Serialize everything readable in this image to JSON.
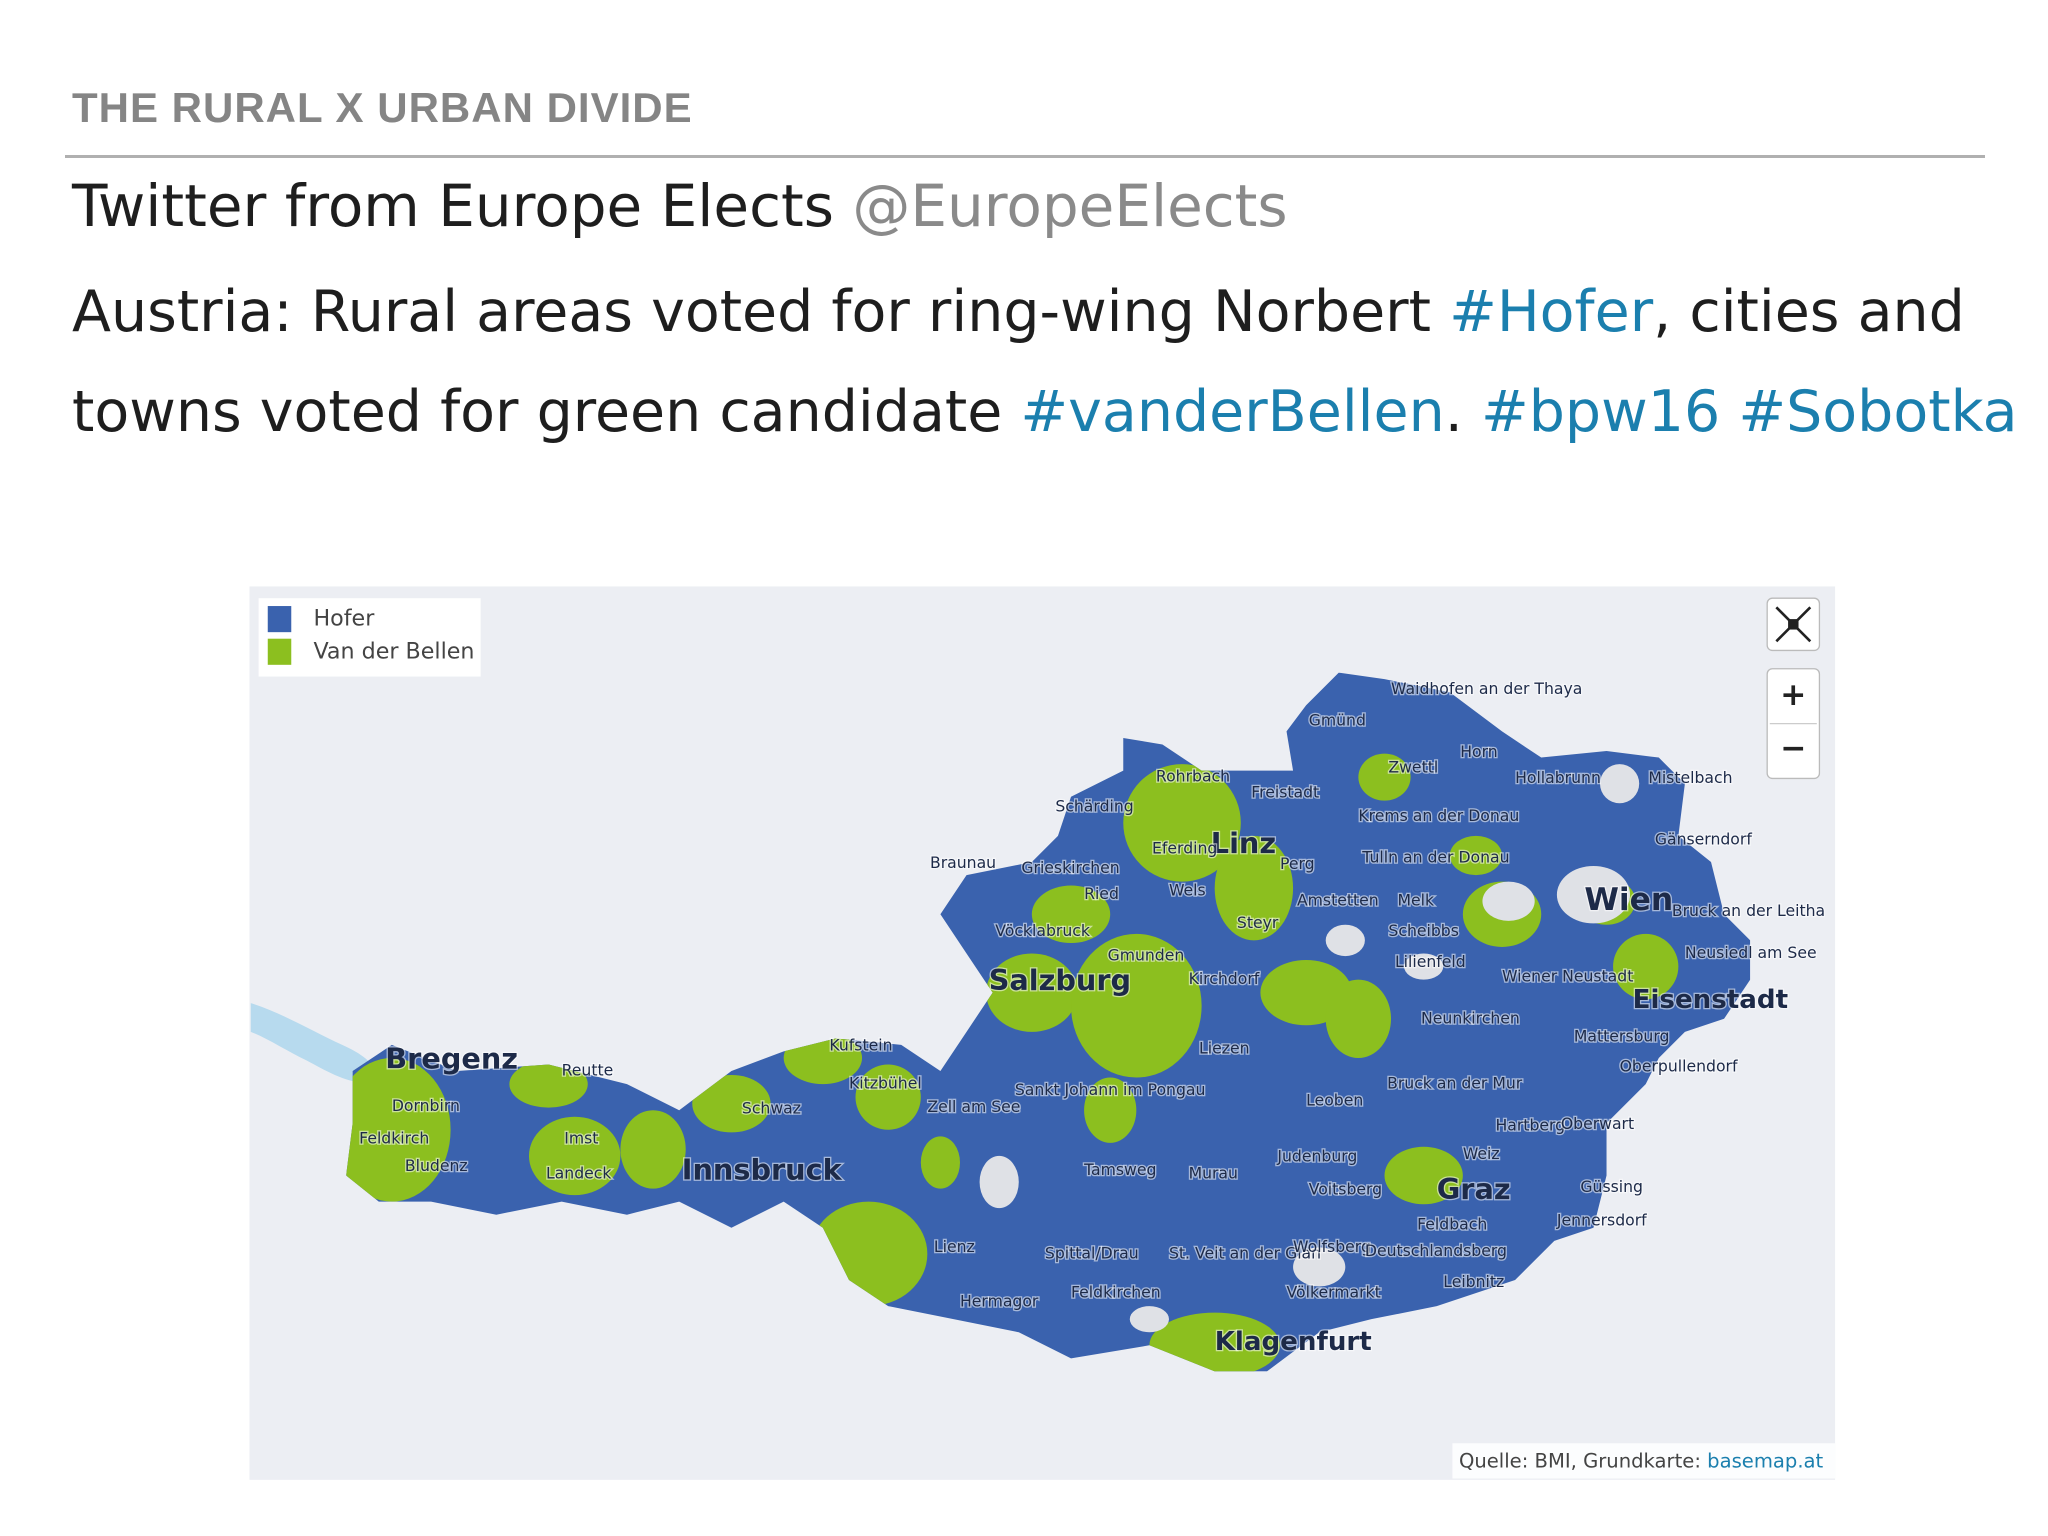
{
  "header": {
    "title": "THE RURAL X URBAN DIVIDE"
  },
  "tweet": {
    "author": "Twitter from Europe Elects",
    "handle": "@EuropeElects",
    "text": [
      {
        "text": "Austria: Rural areas voted for ring-wing Norbert",
        "hashtag": false
      },
      {
        "text": "#Hofer",
        "hashtag": true
      },
      {
        "text": ", cities and towns voted for green candidate",
        "hashtag": false
      },
      {
        "text": "#vanderBellen",
        "hashtag": true
      },
      {
        "text": ".",
        "hashtag": false
      },
      {
        "text": "#bpw16",
        "hashtag": true
      },
      {
        "text": "#Sobotka",
        "hashtag": true
      }
    ]
  },
  "map": {
    "legend": [
      {
        "name": "Hofer",
        "color": "#3a62ae"
      },
      {
        "name": "Van der Bellen",
        "color": "#8cbf1f"
      }
    ],
    "zoom_in": "+",
    "zoom_out": "−",
    "labels": [
      "Bregenz",
      "Dornbirn",
      "Feldkirch",
      "Bludenz",
      "Reutte",
      "Imst",
      "Landeck",
      "Innsbruck",
      "Schwaz",
      "Kufstein",
      "Kitzbühel",
      "Zell am See",
      "Salzburg",
      "Braunau",
      "Schärding",
      "Rohrbach",
      "Freistadt",
      "Linz",
      "Gmünd",
      "Waidhofen an der Thaya",
      "Zwettl",
      "Horn",
      "Hollabrunn",
      "Mistelbach",
      "Gänserndorf",
      "Krems an der Donau",
      "Tulln an der Donau",
      "Perg",
      "Eferding",
      "Grieskirchen",
      "Ried",
      "Vöcklabruck",
      "Gmunden",
      "Wels",
      "Steyr",
      "Amstetten",
      "Melk",
      "Scheibbs",
      "Lilienfeld",
      "Kirchdorf",
      "Wien",
      "Bruck an der Leitha",
      "Neusiedl am See",
      "Wiener Neustadt",
      "Eisenstadt",
      "Neunkirchen",
      "Mattersburg",
      "Oberpullendorf",
      "Liezen",
      "Sankt Johann im Pongau",
      "Bruck an der Mur",
      "Leoben",
      "Hartberg",
      "Oberwart",
      "Weiz",
      "Judenburg",
      "Tamsweg",
      "Murau",
      "Voitsberg",
      "Graz",
      "Güssing",
      "Jennersdorf",
      "Feldbach",
      "Lienz",
      "Spittal/Drau",
      "St. Veit an der Glan",
      "Wolfsberg",
      "Deutschlandsberg",
      "Leibnitz",
      "Hermagor",
      "Feldkirchen",
      "Völkermarkt",
      "Klagenfurt"
    ],
    "source": "Quelle: BMI, Grundkarte:",
    "source_link": "basemap.at"
  }
}
